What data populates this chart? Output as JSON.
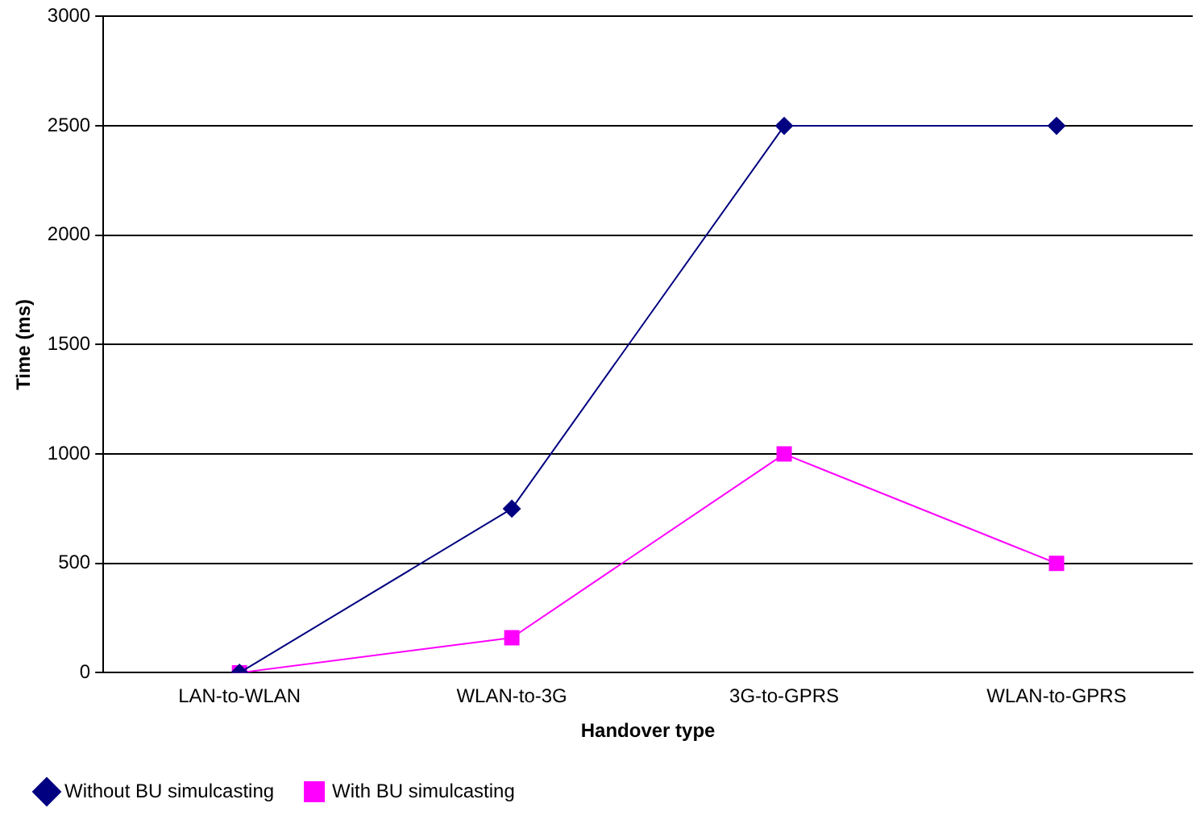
{
  "chart_data": {
    "type": "line",
    "xlabel": "Handover type",
    "ylabel": "Time (ms)",
    "categories": [
      "LAN-to-WLAN",
      "WLAN-to-3G",
      "3G-to-GPRS",
      "WLAN-to-GPRS"
    ],
    "series": [
      {
        "name": "Without BU simulcasting",
        "color": "#000080",
        "marker": "diamond",
        "values": [
          0,
          750,
          2500,
          2500
        ]
      },
      {
        "name": "With BU simulcasting",
        "color": "#ff00ff",
        "marker": "square",
        "values": [
          0,
          160,
          1000,
          500
        ]
      }
    ],
    "ylim": [
      0,
      3000
    ],
    "yticks": [
      0,
      500,
      1000,
      1500,
      2000,
      2500,
      3000
    ],
    "grid": "y",
    "legend": "bottom left",
    "line_style": "solid"
  }
}
